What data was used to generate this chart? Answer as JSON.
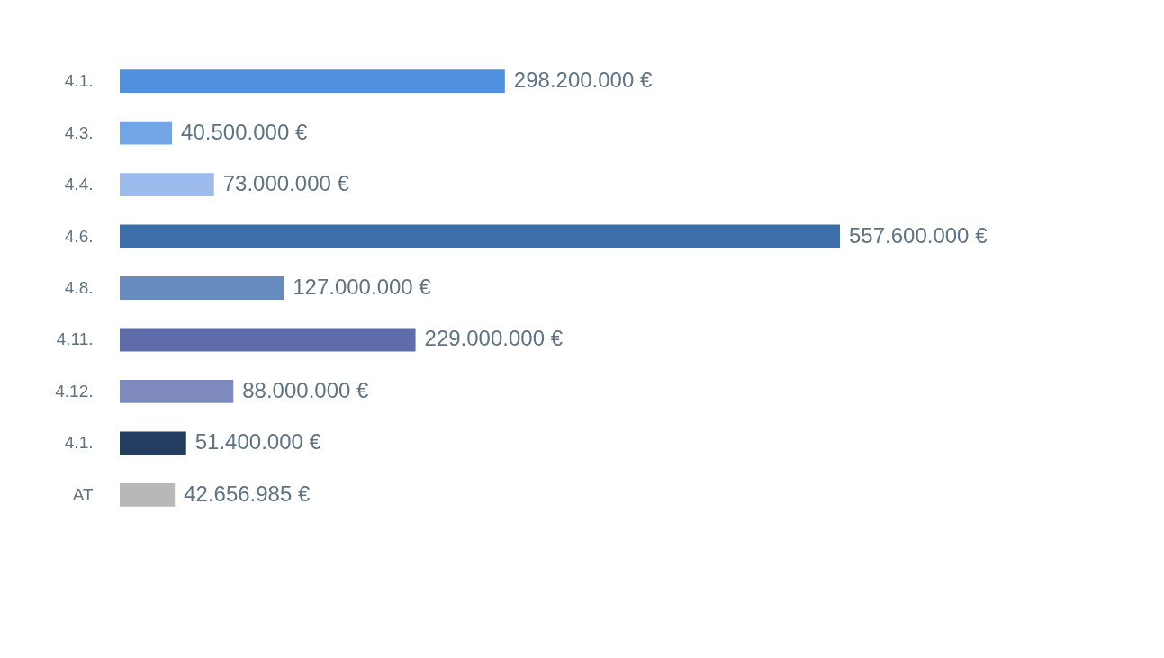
{
  "chart_data": {
    "type": "bar",
    "orientation": "horizontal",
    "categories": [
      "4.1.",
      "4.3.",
      "4.4.",
      "4.6.",
      "4.8.",
      "4.11.",
      "4.12.",
      "4.1.",
      "AT"
    ],
    "values": [
      298200000,
      40500000,
      73000000,
      557600000,
      127000000,
      229000000,
      88000000,
      51400000,
      42656985
    ],
    "colors": [
      "#5290e0",
      "#72a5e6",
      "#9bbcec",
      "#3c6eaa",
      "#668bbc",
      "#5e6daa",
      "#7e8abd",
      "#233d60",
      "#b8b8b8"
    ],
    "value_labels": [
      "298.200.000 €",
      "40.500.000 €",
      "73.000.000 €",
      "557.600.000 €",
      "127.000.000 €",
      "229.000.000 €",
      "88.000.000 €",
      "51.400.000 €",
      "42.656.985 €"
    ]
  }
}
